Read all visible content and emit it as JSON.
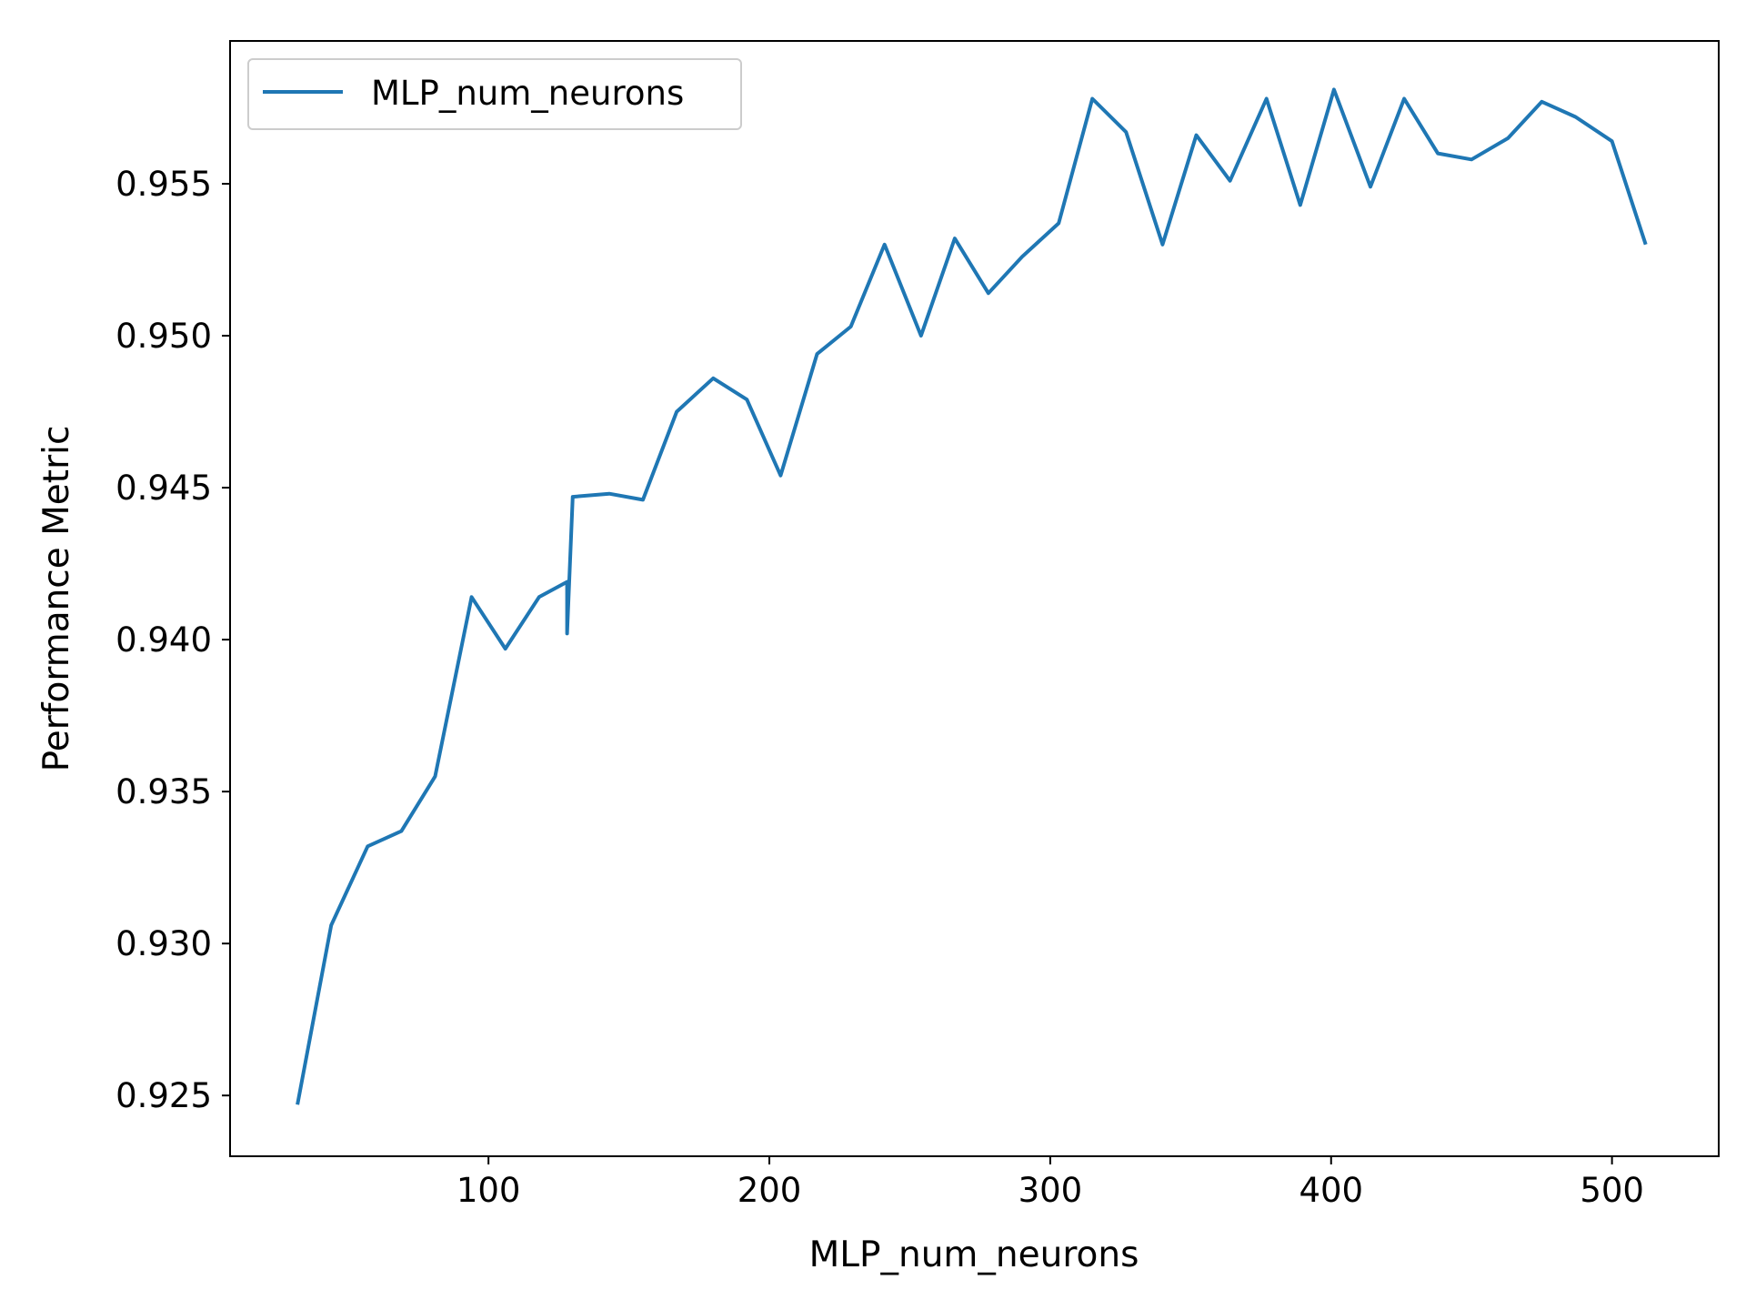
{
  "chart_data": {
    "type": "line",
    "title": "",
    "xlabel": "MLP_num_neurons",
    "ylabel": "Performance Metric",
    "xlim": [
      8,
      538
    ],
    "ylim": [
      0.923,
      0.9597
    ],
    "xticks": [
      100,
      200,
      300,
      400,
      500
    ],
    "yticks": [
      0.925,
      0.93,
      0.935,
      0.94,
      0.945,
      0.95,
      0.955
    ],
    "xtick_labels": [
      "100",
      "200",
      "300",
      "400",
      "500"
    ],
    "ytick_labels": [
      "0.925",
      "0.930",
      "0.935",
      "0.940",
      "0.945",
      "0.950",
      "0.955"
    ],
    "grid": false,
    "legend_position": "upper-left",
    "series": [
      {
        "name": "MLP_num_neurons",
        "color": "#1f77b4",
        "x": [
          32,
          44,
          57,
          69,
          81,
          94,
          106,
          118,
          128,
          128,
          130,
          143,
          155,
          167,
          180,
          192,
          204,
          217,
          229,
          241,
          254,
          266,
          278,
          290,
          303,
          315,
          327,
          340,
          352,
          364,
          377,
          389,
          401,
          414,
          426,
          438,
          450,
          463,
          475,
          487,
          500,
          512
        ],
        "y": [
          0.9247,
          0.9306,
          0.9332,
          0.9337,
          0.9355,
          0.9414,
          0.9397,
          0.9414,
          0.9419,
          0.9402,
          0.9447,
          0.9448,
          0.9446,
          0.9475,
          0.9486,
          0.9479,
          0.9454,
          0.9494,
          0.9503,
          0.953,
          0.95,
          0.9532,
          0.9514,
          0.9526,
          0.9537,
          0.9578,
          0.9567,
          0.953,
          0.9566,
          0.9551,
          0.9578,
          0.9543,
          0.9581,
          0.9549,
          0.9578,
          0.956,
          0.9558,
          0.9565,
          0.9577,
          0.9572,
          0.9564,
          0.953
        ]
      }
    ]
  }
}
